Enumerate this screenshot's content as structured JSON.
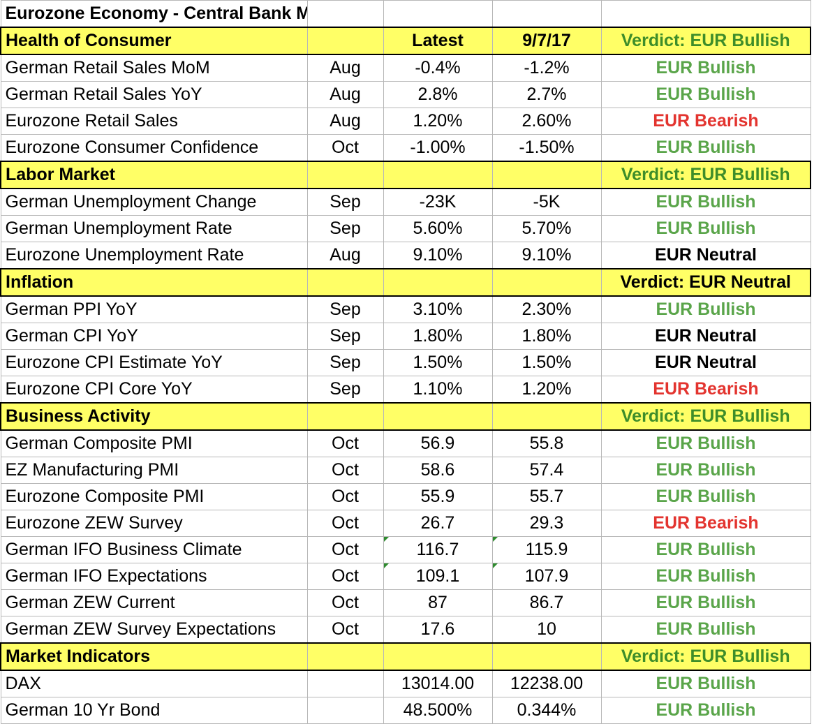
{
  "title": "Eurozone Economy - Central Bank Meeting",
  "header_labels": {
    "latest": "Latest",
    "previous": "9/7/17"
  },
  "sections": [
    {
      "name": "Health of Consumer",
      "verdict": "Verdict: EUR Bullish",
      "rows": [
        {
          "name": "German Retail Sales MoM",
          "period": "Aug",
          "latest": "-0.4%",
          "previous": "-1.2%",
          "verdict": "EUR Bullish"
        },
        {
          "name": "German Retail Sales YoY",
          "period": "Aug",
          "latest": "2.8%",
          "previous": "2.7%",
          "verdict": "EUR Bullish"
        },
        {
          "name": "Eurozone Retail Sales",
          "period": "Aug",
          "latest": "1.20%",
          "previous": "2.60%",
          "verdict": "EUR Bearish"
        },
        {
          "name": "Eurozone Consumer Confidence",
          "period": "Oct",
          "latest": "-1.00%",
          "previous": "-1.50%",
          "verdict": "EUR Bullish"
        }
      ]
    },
    {
      "name": "Labor Market",
      "verdict": "Verdict: EUR Bullish",
      "rows": [
        {
          "name": "German Unemployment Change",
          "period": "Sep",
          "latest": "-23K",
          "previous": "-5K",
          "verdict": "EUR Bullish"
        },
        {
          "name": "German Unemployment Rate",
          "period": "Sep",
          "latest": "5.60%",
          "previous": "5.70%",
          "verdict": "EUR Bullish"
        },
        {
          "name": "Eurozone Unemployment Rate",
          "period": "Aug",
          "latest": "9.10%",
          "previous": "9.10%",
          "verdict": "EUR Neutral"
        }
      ]
    },
    {
      "name": "Inflation",
      "verdict": "Verdict: EUR Neutral",
      "rows": [
        {
          "name": "German PPI YoY",
          "period": "Sep",
          "latest": "3.10%",
          "previous": "2.30%",
          "verdict": "EUR Bullish"
        },
        {
          "name": "German CPI YoY",
          "period": "Sep",
          "latest": "1.80%",
          "previous": "1.80%",
          "verdict": "EUR Neutral"
        },
        {
          "name": "Eurozone CPI Estimate  YoY",
          "period": "Sep",
          "latest": "1.50%",
          "previous": "1.50%",
          "verdict": "EUR Neutral"
        },
        {
          "name": "Eurozone CPI Core YoY",
          "period": "Sep",
          "latest": "1.10%",
          "previous": "1.20%",
          "verdict": "EUR Bearish"
        }
      ]
    },
    {
      "name": "Business Activity",
      "verdict": "Verdict: EUR Bullish",
      "rows": [
        {
          "name": "German Composite PMI",
          "period": "Oct",
          "latest": "56.9",
          "previous": "55.8",
          "verdict": "EUR Bullish"
        },
        {
          "name": "EZ Manufacturing PMI",
          "period": "Oct",
          "latest": "58.6",
          "previous": "57.4",
          "verdict": "EUR Bullish"
        },
        {
          "name": "Eurozone Composite PMI",
          "period": "Oct",
          "latest": "55.9",
          "previous": "55.7",
          "verdict": "EUR Bullish"
        },
        {
          "name": "Eurozone ZEW Survey",
          "period": "Oct",
          "latest": "26.7",
          "previous": "29.3",
          "verdict": "EUR Bearish"
        },
        {
          "name": "German IFO Business Climate",
          "period": "Oct",
          "latest": "116.7",
          "previous": "115.9",
          "verdict": "EUR Bullish",
          "flagged": true
        },
        {
          "name": "German IFO Expectations",
          "period": "Oct",
          "latest": "109.1",
          "previous": "107.9",
          "verdict": "EUR Bullish",
          "flagged": true
        },
        {
          "name": "German ZEW Current",
          "period": "Oct",
          "latest": "87",
          "previous": "86.7",
          "verdict": "EUR Bullish"
        },
        {
          "name": "German ZEW Survey Expectations",
          "period": "Oct",
          "latest": "17.6",
          "previous": "10",
          "verdict": "EUR Bullish"
        }
      ]
    },
    {
      "name": "Market Indicators",
      "verdict": "Verdict: EUR Bullish",
      "rows": [
        {
          "name": "DAX",
          "period": "",
          "latest": "13014.00",
          "previous": "12238.00",
          "verdict": "EUR Bullish"
        },
        {
          "name": "German 10 Yr Bond",
          "period": "",
          "latest": "48.500%",
          "previous": "0.344%",
          "verdict": "EUR Bullish"
        }
      ]
    }
  ],
  "colors": {
    "header_fill": "#ffff66",
    "bullish": "#5aa54a",
    "bullish_verdict": "#3e8d2a",
    "bearish": "#e3342f",
    "neutral": "#000000",
    "gridline": "#b7b7b7"
  }
}
